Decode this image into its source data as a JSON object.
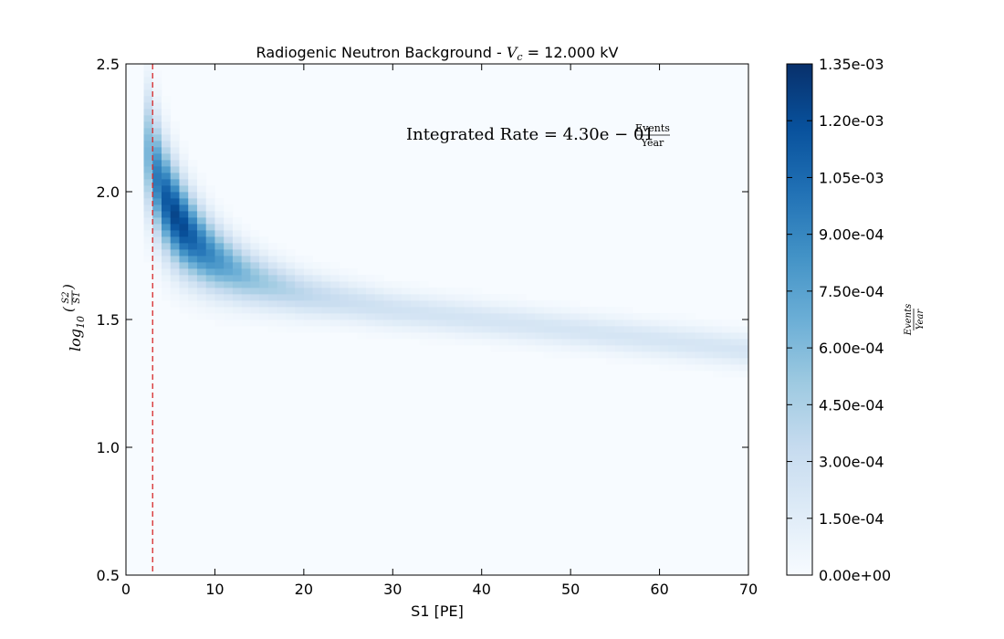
{
  "chart_data": {
    "type": "heatmap",
    "title_prefix": "Radiogenic Neutron Background - ",
    "title_var": "V",
    "title_var_sub": "c",
    "title_suffix": " = 12.000 kV",
    "xlabel": "S1 [PE]",
    "ylabel_prefix": "log",
    "ylabel_sub": "10",
    "ylabel_num": "S2",
    "ylabel_den": "S1",
    "xlim": [
      0,
      70
    ],
    "ylim": [
      0.5,
      2.5
    ],
    "xticks": [
      "0",
      "10",
      "20",
      "30",
      "40",
      "50",
      "60",
      "70"
    ],
    "yticks": [
      "0.5",
      "1.0",
      "1.5",
      "2.0",
      "2.5"
    ],
    "colormap": "Blues",
    "colors": {
      "low": "#f7fbff",
      "high": "#08306b",
      "threshold_line": "#d62728"
    },
    "threshold_x": 3,
    "band": {
      "description_free": true,
      "center_points": [
        [
          2.5,
          2.15
        ],
        [
          4,
          2.0
        ],
        [
          6,
          1.88
        ],
        [
          8,
          1.8
        ],
        [
          10,
          1.74
        ],
        [
          13,
          1.68
        ],
        [
          16,
          1.64
        ],
        [
          20,
          1.6
        ],
        [
          25,
          1.57
        ],
        [
          30,
          1.54
        ],
        [
          40,
          1.5
        ],
        [
          50,
          1.46
        ],
        [
          60,
          1.42
        ],
        [
          70,
          1.38
        ]
      ],
      "peak_rate": 0.00135
    },
    "annotation_text": "Integrated Rate = 4.30e − 01",
    "annotation_unit_num": "Events",
    "annotation_unit_den": "Year",
    "colorbar": {
      "min": 0,
      "max": 0.00135,
      "ticks": [
        "1.35e-03",
        "1.20e-03",
        "1.05e-03",
        "9.00e-04",
        "7.50e-04",
        "6.00e-04",
        "4.50e-04",
        "3.00e-04",
        "1.50e-04",
        "0.00e+00"
      ],
      "label_num": "Events",
      "label_den": "Year"
    }
  }
}
